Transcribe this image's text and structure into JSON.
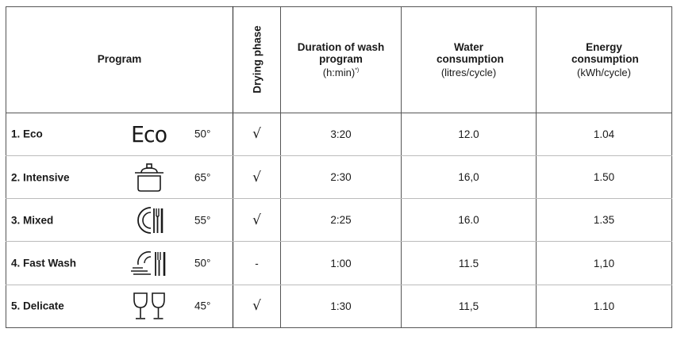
{
  "table": {
    "header": {
      "program": "Program",
      "drying": "Drying phase",
      "duration_title": "Duration of wash program",
      "duration_unit": "(h:min)",
      "duration_note": "*)",
      "water_title": "Water consumption",
      "water_unit": "(litres/cycle)",
      "energy_title": "Energy consumption",
      "energy_unit": "(kWh/cycle)"
    },
    "rows": [
      {
        "name": "1. Eco",
        "icon": "eco-text-icon",
        "icon_text": "Eco",
        "temp": "50°",
        "drying": "√",
        "duration": "3:20",
        "water": "12.0",
        "energy": "1.04"
      },
      {
        "name": "2. Intensive",
        "icon": "pot-icon",
        "temp": "65°",
        "drying": "√",
        "duration": "2:30",
        "water": "16,0",
        "energy": "1.50"
      },
      {
        "name": "3. Mixed",
        "icon": "plate-cutlery-icon",
        "temp": "55°",
        "drying": "√",
        "duration": "2:25",
        "water": "16.0",
        "energy": "1.35"
      },
      {
        "name": "4. Fast Wash",
        "icon": "fast-wash-icon",
        "temp": "50°",
        "drying": "-",
        "duration": "1:00",
        "water": "11.5",
        "energy": "1,10"
      },
      {
        "name": "5. Delicate",
        "icon": "wine-glasses-icon",
        "temp": "45°",
        "drying": "√",
        "duration": "1:30",
        "water": "11,5",
        "energy": "1.10"
      }
    ]
  }
}
